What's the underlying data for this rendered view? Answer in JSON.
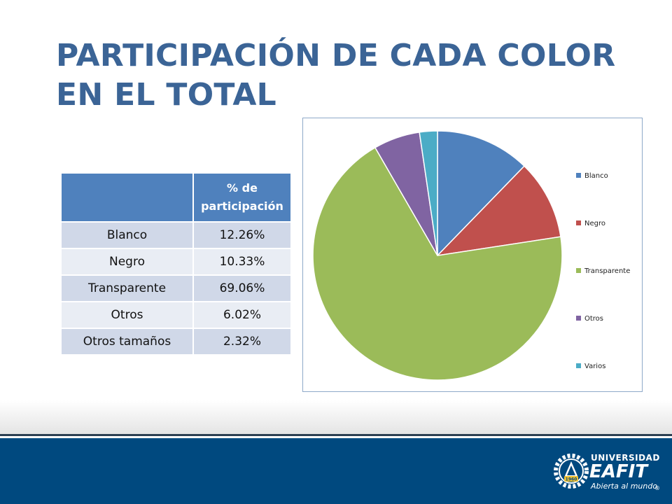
{
  "slide": {
    "title_line1": "PARTICIPACIÓN DE CADA COLOR",
    "title_line2": "EN EL TOTAL"
  },
  "table": {
    "header": [
      "",
      "% de participación"
    ],
    "rows": [
      {
        "label": "Blanco",
        "value": "12.26%"
      },
      {
        "label": "Negro",
        "value": "10.33%"
      },
      {
        "label": "Transparente",
        "value": "69.06%"
      },
      {
        "label": "Otros",
        "value": "6.02%"
      },
      {
        "label": "Otros tamaños",
        "value": "2.32%"
      }
    ]
  },
  "chart_data": {
    "type": "pie",
    "title": "",
    "categories": [
      "Blanco",
      "Negro",
      "Transparente",
      "Otros",
      "Varios"
    ],
    "values": [
      12.26,
      10.33,
      69.06,
      6.02,
      2.32
    ],
    "colors": [
      "#4f81bd",
      "#c0504d",
      "#9bbb59",
      "#8064a2",
      "#4bacc6"
    ],
    "start_angle_deg": 0,
    "direction": "clockwise",
    "legend_position": "right"
  },
  "logo": {
    "line1": "UNIVERSIDAD",
    "line2": "EAFIT",
    "tagline": "Abierta al mundo",
    "year": "1960",
    "mark": "®"
  },
  "colors": {
    "title": "#3b6496",
    "table_header": "#4f81bd",
    "footer": "#00497f"
  }
}
